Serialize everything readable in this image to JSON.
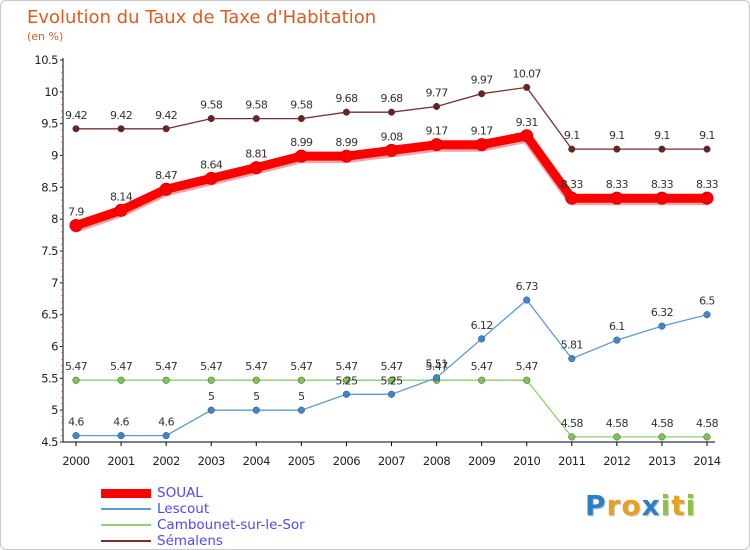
{
  "title": "Evolution du Taux de Taxe d'Habitation",
  "unit_label": "(en %)",
  "brand": {
    "letters": [
      {
        "ch": "P",
        "color": "#2a7fc8"
      },
      {
        "ch": "r",
        "color": "#e8a020"
      },
      {
        "ch": "o",
        "color": "#e8a020"
      },
      {
        "ch": "x",
        "color": "#2a7fc8"
      },
      {
        "ch": "i",
        "color": "#8cc63f"
      },
      {
        "ch": "t",
        "color": "#e8a020"
      },
      {
        "ch": "i",
        "color": "#8cc63f"
      }
    ]
  },
  "chart_data": {
    "type": "line",
    "title": "Evolution du Taux de Taxe d'Habitation",
    "ylabel": "(en %)",
    "xlabel": "",
    "x": [
      2000,
      2001,
      2002,
      2003,
      2004,
      2005,
      2006,
      2007,
      2008,
      2009,
      2010,
      2011,
      2012,
      2013,
      2014
    ],
    "ylim": [
      4.5,
      10.5
    ],
    "yticks": [
      "4.5",
      "5",
      "5.5",
      "6",
      "6.5",
      "7",
      "7.5",
      "8",
      "8.5",
      "9",
      "9.5",
      "10",
      "10.5"
    ],
    "grid": false,
    "legend_position": "bottom-left",
    "series": [
      {
        "name": "SOUAL",
        "color": "#ff0000",
        "emphasis": true,
        "values": [
          7.9,
          8.14,
          8.47,
          8.64,
          8.81,
          8.99,
          8.99,
          9.08,
          9.17,
          9.17,
          9.31,
          8.33,
          8.33,
          8.33,
          8.33
        ],
        "labels": [
          "7.9",
          "8.14",
          "8.47",
          "8.64",
          "8.81",
          "8.99",
          "8.99",
          "9.08",
          "9.17",
          "9.17",
          "9.31",
          "8.33",
          "8.33",
          "8.33",
          "8.33"
        ]
      },
      {
        "name": "Lescout",
        "color": "#5b9bd5",
        "point_color": "#3f86d0",
        "values": [
          4.6,
          4.6,
          4.6,
          5,
          5,
          5,
          5.25,
          5.25,
          5.51,
          6.12,
          6.73,
          5.81,
          6.1,
          6.32,
          6.5
        ],
        "labels": [
          "4.6",
          "4.6",
          "4.6",
          "5",
          "5",
          "5",
          "5.25",
          "5.25",
          "5.51",
          "6.12",
          "6.73",
          "5.81",
          "6.1",
          "6.32",
          "6.5"
        ]
      },
      {
        "name": "Cambounet-sur-le-Sor",
        "color": "#8fd16a",
        "point_color": "#7cc64f",
        "values": [
          5.47,
          5.47,
          5.47,
          5.47,
          5.47,
          5.47,
          5.47,
          5.47,
          5.47,
          5.47,
          5.47,
          4.58,
          4.58,
          4.58,
          4.58
        ],
        "labels": [
          "5.47",
          "5.47",
          "5.47",
          "5.47",
          "5.47",
          "5.47",
          "5.47",
          "5.47",
          "5.47",
          "5.47",
          "5.47",
          "4.58",
          "4.58",
          "4.58",
          "4.58"
        ]
      },
      {
        "name": "Sémalens",
        "color": "#7a2e2e",
        "point_color": "#6a2222",
        "values": [
          9.42,
          9.42,
          9.42,
          9.58,
          9.58,
          9.58,
          9.68,
          9.68,
          9.77,
          9.97,
          10.07,
          9.1,
          9.1,
          9.1,
          9.1
        ],
        "labels": [
          "9.42",
          "9.42",
          "9.42",
          "9.58",
          "9.58",
          "9.58",
          "9.68",
          "9.68",
          "9.77",
          "9.97",
          "10.07",
          "9.1",
          "9.1",
          "9.1",
          "9.1"
        ]
      }
    ]
  }
}
